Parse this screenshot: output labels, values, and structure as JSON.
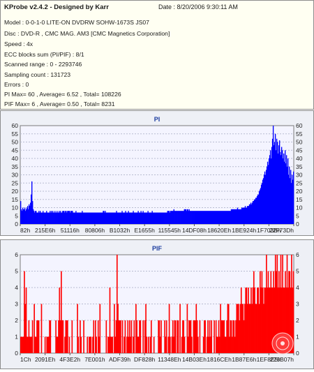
{
  "info": {
    "title": "KProbe v2.4.2 - Designed by Karr",
    "date": "Date : 8/20/2006 9:30:11 AM",
    "lines": [
      "Model : 0-0-1-0 LITE-ON DVDRW SOHW-1673S JS07",
      "Disc : DVD-R , CMC MAG. AM3 [CMC Magnetics Corporation]",
      "Speed : 4x",
      "ECC blocks sum (PI/PIF) : 8/1",
      "Scanned range : 0 - 2293746",
      "Sampling count : 131723",
      "Errors : 0",
      "PI Max= 60 , Average= 6.52 , Total= 108226",
      "PIF Max= 6 , Average= 0.50 , Total= 8231"
    ]
  },
  "colors": {
    "pi": "#0000ff",
    "pif": "#ff0000",
    "plot_bg": "#f4f4ff",
    "grid": "#b8bcd0"
  },
  "chart_data": [
    {
      "type": "bar",
      "title": "PI",
      "ylim": [
        0,
        60
      ],
      "yticks": [
        0,
        5,
        10,
        15,
        20,
        25,
        30,
        35,
        40,
        45,
        50,
        55,
        60
      ],
      "xtick_labels": [
        "82h",
        "215E6h",
        "51116h",
        "80806h",
        "B1032h",
        "E1655h",
        "115545h",
        "14DF08h",
        "18620Eh",
        "1BE924h",
        "1F703Bh",
        "22F73Dh"
      ],
      "series": [
        {
          "values": [
            14,
            9,
            8,
            10,
            9,
            9,
            10,
            8,
            9,
            10,
            11,
            9,
            12,
            11,
            13,
            18,
            26,
            14,
            9,
            8,
            7,
            8,
            8,
            7,
            7,
            7,
            8,
            7,
            8,
            7,
            7,
            7,
            8,
            7,
            7,
            7,
            7,
            8,
            7,
            7,
            7,
            7,
            8,
            7,
            8,
            7,
            8,
            7,
            7,
            8,
            7,
            7,
            8,
            7,
            7,
            8,
            7,
            8,
            7,
            7,
            8,
            8,
            8,
            7,
            8,
            8,
            7,
            8,
            8,
            8,
            8,
            7,
            8,
            8,
            8,
            7,
            7,
            7,
            7,
            8,
            7,
            7,
            7,
            7,
            7,
            7,
            7,
            7,
            8,
            7,
            7,
            7,
            7,
            7,
            7,
            7,
            7,
            7,
            7,
            7,
            7,
            7,
            7,
            7,
            7,
            7,
            7,
            7,
            7,
            7,
            7,
            7,
            7,
            7,
            7,
            7,
            7,
            7,
            8,
            8,
            7,
            8,
            7,
            7,
            7,
            7,
            7,
            7,
            7,
            7,
            7,
            7,
            7,
            7,
            7,
            7,
            7,
            8,
            7,
            7,
            7,
            7,
            7,
            7,
            7,
            8,
            7,
            7,
            7,
            7,
            8,
            7,
            7,
            7,
            8,
            7,
            7,
            7,
            7,
            7,
            7,
            8,
            7,
            7,
            7,
            7,
            7,
            7,
            8,
            7,
            7,
            7,
            8,
            7,
            7,
            8,
            7,
            7,
            7,
            7,
            7,
            7,
            8,
            7,
            7,
            7,
            7,
            7,
            8,
            7,
            7,
            7,
            7,
            7,
            7,
            7,
            7,
            7,
            7,
            7,
            7,
            7,
            7,
            7,
            7,
            7,
            7,
            7,
            7,
            7,
            8,
            8,
            8,
            7,
            8,
            8,
            8,
            8,
            8,
            9,
            8,
            8,
            8,
            8,
            8,
            8,
            8,
            8,
            8,
            8,
            8,
            8,
            8,
            8,
            9,
            9,
            9,
            8,
            9,
            9,
            8,
            9,
            8,
            8,
            8,
            8,
            8,
            8,
            8,
            8,
            8,
            8,
            8,
            8,
            8,
            8,
            8,
            8,
            8,
            8,
            8,
            8,
            8,
            8,
            8,
            8,
            8,
            8,
            8,
            8,
            8,
            8,
            8,
            8,
            8,
            8,
            8,
            8,
            8,
            8,
            8,
            8,
            8,
            8,
            8,
            8,
            8,
            8,
            8,
            8,
            8,
            8,
            8,
            8,
            8,
            8,
            8,
            8,
            8,
            8,
            8,
            9,
            9,
            9,
            9,
            9,
            9,
            9,
            9,
            9,
            10,
            9,
            9,
            9,
            9,
            9,
            10,
            10,
            10,
            10,
            10,
            11,
            10,
            10,
            11,
            11,
            11,
            12,
            12,
            13,
            12,
            13,
            14,
            14,
            15,
            15,
            16,
            16,
            17,
            18,
            18,
            20,
            21,
            22,
            24,
            25,
            27,
            28,
            30,
            32,
            30,
            33,
            35,
            38,
            36,
            40,
            42,
            45,
            40,
            47,
            52,
            60,
            48,
            50,
            55,
            45,
            52,
            50,
            43,
            48,
            51,
            44,
            42,
            47,
            45,
            40,
            43,
            38,
            45,
            37,
            42,
            35,
            40,
            30,
            35,
            28,
            33,
            25,
            30,
            27,
            32
          ]
        }
      ]
    },
    {
      "type": "bar",
      "title": "PIF",
      "ylim": [
        0,
        6
      ],
      "yticks": [
        0,
        1,
        2,
        3,
        4,
        5,
        6
      ],
      "xtick_labels": [
        "1Ch",
        "2091Eh",
        "4F3E2h",
        "7E001h",
        "ADF39h",
        "DF828h",
        "11348Eh",
        "14B03Eh",
        "1816CEh",
        "1B87E6h",
        "1EF8E5h",
        "226B07h"
      ],
      "series": [
        {
          "values": [
            1,
            1,
            1,
            1,
            5,
            3,
            4,
            1,
            1,
            2,
            1,
            1,
            1,
            2,
            0,
            3,
            1,
            1,
            2,
            2,
            2,
            0,
            0,
            3,
            0,
            0,
            0,
            1,
            0,
            1,
            1,
            1,
            2,
            2,
            0,
            0,
            0,
            0,
            0,
            2,
            1,
            1,
            2,
            4,
            2,
            5,
            2,
            2,
            0,
            1,
            2,
            2,
            2,
            0,
            1,
            0,
            0,
            2,
            0,
            0,
            0,
            0,
            0,
            3,
            1,
            0,
            2,
            1,
            0,
            0,
            2,
            0,
            0,
            0,
            1,
            0,
            1,
            1,
            1,
            0,
            1,
            2,
            0,
            2,
            1,
            0,
            2,
            1,
            3,
            0,
            0,
            0,
            0,
            0,
            0,
            2,
            0,
            1,
            1,
            4,
            1,
            1,
            1,
            0,
            3,
            1,
            2,
            6,
            3,
            2,
            2,
            2,
            0,
            2,
            0,
            1,
            2,
            0,
            1,
            2,
            1,
            2,
            1,
            2,
            0,
            1,
            2,
            0,
            3,
            2,
            1,
            1,
            2,
            2,
            0,
            0,
            2,
            0,
            2,
            3,
            1,
            0,
            1,
            0,
            1,
            2,
            0,
            0,
            1,
            0,
            0,
            0,
            0,
            2,
            2,
            1,
            2,
            0,
            0,
            0,
            2,
            1,
            2,
            0,
            1,
            3,
            1,
            0,
            1,
            2,
            1,
            2,
            2,
            0,
            2,
            2,
            0,
            3,
            0,
            1,
            2,
            2,
            1,
            0,
            0,
            3,
            1,
            2,
            2,
            2,
            1,
            0,
            2,
            2,
            2,
            3,
            2,
            1,
            0,
            2,
            0,
            0,
            0,
            1,
            2,
            2,
            0,
            1,
            2,
            1,
            2,
            1,
            2,
            0,
            0,
            2,
            0,
            2,
            1,
            1,
            2,
            1,
            3,
            2,
            2,
            2,
            2,
            1,
            1,
            2,
            3,
            3,
            1,
            2,
            2,
            1,
            2,
            2,
            1,
            2,
            3,
            3,
            3,
            2,
            3,
            4,
            3,
            3,
            2,
            3,
            4,
            4,
            3,
            4,
            3,
            3,
            4,
            3,
            4,
            5,
            4,
            3,
            3,
            4,
            4,
            3,
            5,
            4,
            5,
            4,
            3,
            4,
            4,
            6,
            4,
            5,
            4,
            4,
            5,
            4,
            4,
            5,
            4,
            6,
            5,
            6,
            4,
            5,
            4,
            6,
            4,
            6,
            4,
            4,
            5,
            4,
            6,
            4,
            5,
            5,
            4,
            6,
            4,
            5
          ]
        }
      ]
    }
  ]
}
